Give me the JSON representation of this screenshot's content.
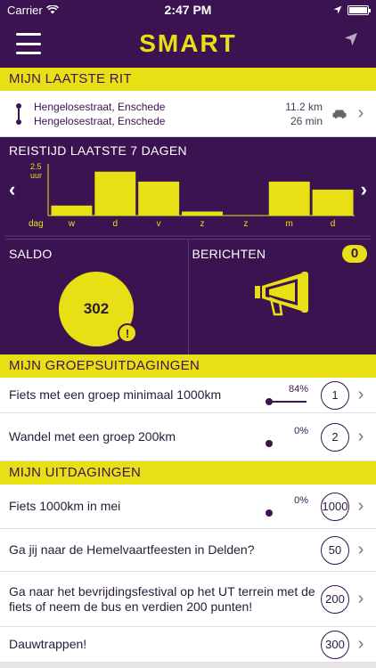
{
  "status_bar": {
    "carrier": "Carrier",
    "time": "2:47 PM"
  },
  "header": {
    "logo": "SMART"
  },
  "last_ride": {
    "section_title": "MIJN LAATSTE RIT",
    "from": "Hengelosestraat, Enschede",
    "to": "Hengelosestraat, Enschede",
    "distance": "11.2 km",
    "duration": "26 min"
  },
  "travel_time": {
    "title": "REISTIJD LAATSTE 7 DAGEN",
    "prev_arrow": "‹",
    "next_arrow": "›"
  },
  "chart_data": {
    "type": "bar",
    "title": "REISTIJD LAATSTE 7 DAGEN",
    "ylabel": "uur",
    "ylim": [
      0,
      2.5
    ],
    "y_tick_label": "2.5",
    "x_axis_label": "dag",
    "categories": [
      "w",
      "d",
      "v",
      "z",
      "z",
      "m",
      "d"
    ],
    "values": [
      0.5,
      2.2,
      1.7,
      0.2,
      0,
      1.7,
      1.3
    ],
    "bar_color": "#e8e014"
  },
  "saldo": {
    "title": "SALDO",
    "value": "302",
    "warning": "!"
  },
  "berichten": {
    "title": "BERICHTEN",
    "count": "0"
  },
  "group_challenges": {
    "section_title": "MIJN GROEPSUITDAGINGEN",
    "items": [
      {
        "label": "Fiets met een groep minimaal 1000km",
        "progress_text": "84%",
        "progress": 0.84,
        "count": "1"
      },
      {
        "label": "Wandel met een groep 200km",
        "progress_text": "0%",
        "progress": 0,
        "count": "2"
      }
    ]
  },
  "my_challenges": {
    "section_title": "MIJN UITDAGINGEN",
    "items": [
      {
        "label": "Fiets 1000km in mei",
        "progress_text": "0%",
        "progress": 0,
        "count": "1000"
      },
      {
        "label": "Ga jij naar de Hemelvaartfeesten in Delden?",
        "count": "50"
      },
      {
        "label": "Ga naar het bevrijdingsfestival op het UT terrein met de fiets of neem de bus en verdien 200 punten!",
        "count": "200"
      },
      {
        "label": "Dauwtrappen!",
        "count": "300"
      }
    ]
  },
  "icons": {
    "menu": "hamburger-icon",
    "location": "location-arrow-icon",
    "car": "car-icon",
    "chevron": "chevron-right-icon",
    "megaphone": "megaphone-icon"
  },
  "colors": {
    "purple": "#3b1350",
    "yellow": "#e8e014"
  }
}
